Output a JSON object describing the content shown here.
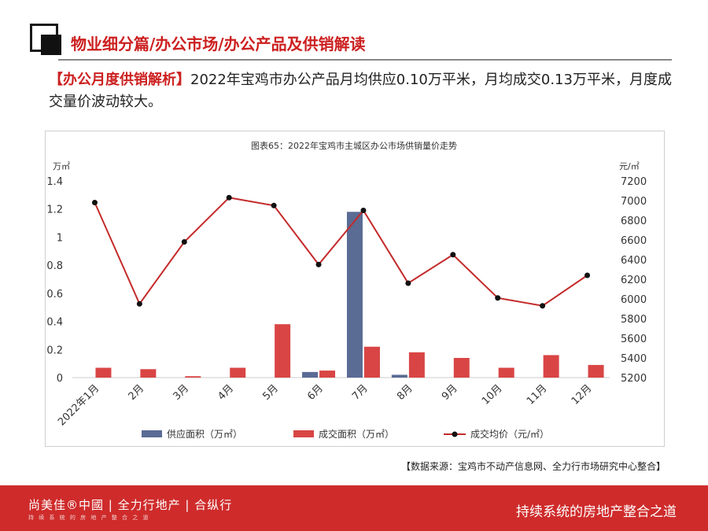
{
  "header": {
    "title": "物业细分篇/办公市场/办公产品及供销解读"
  },
  "intro": {
    "tag": "【办公月度供销解析】",
    "text": "2022年宝鸡市办公产品月均供应0.10万平米，月均成交0.13万平米，月度成交量价波动较大。"
  },
  "chart_data": {
    "type": "bar+line",
    "title": "图表65：2022年宝鸡市主城区办公市场供销量价走势",
    "categories": [
      "2022年1月",
      "2月",
      "3月",
      "4月",
      "5月",
      "6月",
      "7月",
      "8月",
      "9月",
      "10月",
      "11月",
      "12月"
    ],
    "left_axis": {
      "unit": "万㎡",
      "min": 0,
      "max": 1.4,
      "ticks": [
        "0",
        "0.2",
        "0.4",
        "0.6",
        "0.8",
        "1",
        "1.2",
        "1.4"
      ]
    },
    "right_axis": {
      "unit": "元/㎡",
      "min": 5200,
      "max": 7200,
      "ticks": [
        "5200",
        "5400",
        "5600",
        "5800",
        "6000",
        "6200",
        "6400",
        "6600",
        "6800",
        "7000",
        "7200"
      ]
    },
    "series": [
      {
        "name": "供应面积（万㎡）",
        "type": "bar",
        "axis": "left",
        "color": "#5a6b94",
        "values": [
          0,
          0,
          0,
          0,
          0,
          0.04,
          1.18,
          0.02,
          0,
          0,
          0,
          0
        ]
      },
      {
        "name": "成交面积（万㎡）",
        "type": "bar",
        "axis": "left",
        "color": "#d94545",
        "values": [
          0.07,
          0.06,
          0.01,
          0.07,
          0.38,
          0.05,
          0.22,
          0.18,
          0.14,
          0.07,
          0.16,
          0.09
        ]
      },
      {
        "name": "成交均价（元/㎡）",
        "type": "line",
        "axis": "right",
        "color": "#c42a2a",
        "marker_color": "#111111",
        "values": [
          6980,
          5950,
          6580,
          7030,
          6950,
          6350,
          6900,
          6160,
          6450,
          6010,
          5930,
          6240
        ]
      }
    ],
    "grid": false,
    "legend": "bottom"
  },
  "source": "【数据来源：宝鸡市不动产信息网、全力行市场研究中心整合】",
  "footer": {
    "brand1": "尚美佳®中國",
    "brand2": "全力行地产",
    "brand3": "合纵行",
    "brand_sub": "持 续 系 统 的 房 地 产 整 合 之 道",
    "slogan": "持续系统的房地产整合之道"
  }
}
